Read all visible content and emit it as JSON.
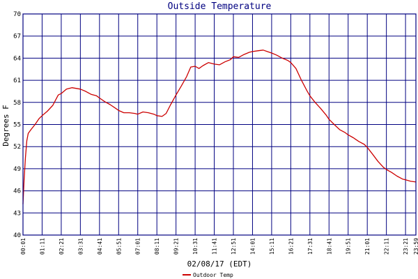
{
  "chart_data": {
    "type": "line",
    "title": "Outside Temperature",
    "xlabel": "02/08/17 (EDT)",
    "ylabel": "Degrees F",
    "ylim": [
      40,
      70
    ],
    "yticks": [
      40,
      43,
      46,
      49,
      52,
      55,
      58,
      61,
      64,
      67,
      70
    ],
    "xlim": [
      "00:01",
      "23:59"
    ],
    "xticks": [
      "00:01",
      "01:11",
      "02:21",
      "03:31",
      "04:41",
      "05:51",
      "07:01",
      "08:11",
      "09:21",
      "10:31",
      "11:41",
      "12:51",
      "14:01",
      "15:11",
      "16:21",
      "17:31",
      "18:41",
      "19:51",
      "21:01",
      "22:11",
      "23:21",
      "23:59"
    ],
    "grid": true,
    "legend_placement": "bottom-center",
    "colors": {
      "series": "#cc0000",
      "grid": "#000080",
      "title": "#000080"
    },
    "series": [
      {
        "name": "Outdoor Temp",
        "x": [
          "00:01",
          "00:05",
          "00:10",
          "00:15",
          "00:20",
          "00:30",
          "00:45",
          "01:00",
          "01:11",
          "01:30",
          "01:50",
          "02:00",
          "02:10",
          "02:21",
          "02:40",
          "03:00",
          "03:15",
          "03:31",
          "03:50",
          "04:10",
          "04:30",
          "04:41",
          "05:00",
          "05:20",
          "05:40",
          "05:51",
          "06:10",
          "06:30",
          "06:50",
          "07:01",
          "07:20",
          "07:40",
          "08:00",
          "08:11",
          "08:30",
          "08:45",
          "09:00",
          "09:21",
          "09:40",
          "10:00",
          "10:15",
          "10:31",
          "10:45",
          "11:00",
          "11:20",
          "11:41",
          "12:00",
          "12:20",
          "12:40",
          "12:51",
          "13:10",
          "13:30",
          "13:50",
          "14:01",
          "14:20",
          "14:40",
          "14:55",
          "15:11",
          "15:30",
          "15:50",
          "16:10",
          "16:21",
          "16:40",
          "17:00",
          "17:20",
          "17:31",
          "17:50",
          "18:10",
          "18:30",
          "18:41",
          "19:00",
          "19:20",
          "19:40",
          "19:51",
          "20:10",
          "20:30",
          "20:50",
          "21:01",
          "21:20",
          "21:40",
          "22:00",
          "22:11",
          "22:30",
          "22:50",
          "23:10",
          "23:21",
          "23:40",
          "23:59"
        ],
        "values": [
          44.2,
          47.5,
          50.5,
          52.8,
          53.8,
          54.3,
          55.0,
          55.8,
          56.2,
          56.8,
          57.6,
          58.3,
          59.0,
          59.2,
          59.8,
          60.0,
          59.9,
          59.8,
          59.5,
          59.1,
          58.9,
          58.6,
          58.1,
          57.7,
          57.2,
          56.9,
          56.6,
          56.6,
          56.5,
          56.4,
          56.7,
          56.6,
          56.4,
          56.2,
          56.1,
          56.5,
          57.6,
          59.0,
          60.2,
          61.5,
          62.8,
          62.9,
          62.6,
          63.0,
          63.4,
          63.2,
          63.1,
          63.5,
          63.8,
          64.2,
          64.1,
          64.5,
          64.8,
          64.9,
          65.0,
          65.1,
          64.9,
          64.7,
          64.4,
          64.0,
          63.7,
          63.4,
          62.6,
          61.0,
          59.6,
          58.9,
          58.0,
          57.2,
          56.3,
          55.7,
          55.0,
          54.3,
          53.9,
          53.6,
          53.2,
          52.7,
          52.3,
          51.9,
          51.0,
          50.0,
          49.2,
          48.9,
          48.5,
          48.0,
          47.6,
          47.5,
          47.3,
          47.2
        ]
      }
    ]
  }
}
